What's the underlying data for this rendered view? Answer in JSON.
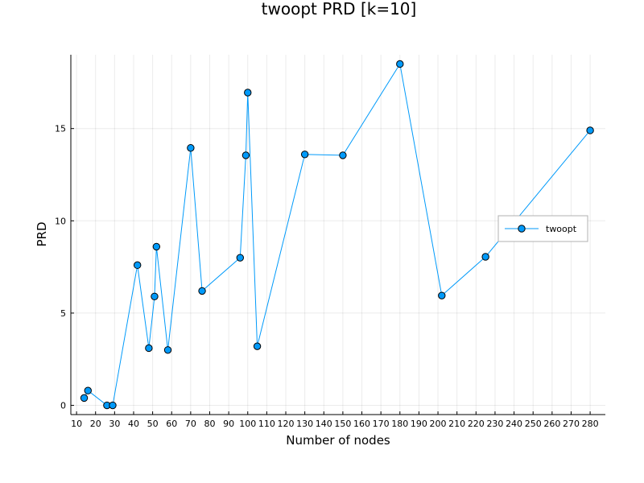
{
  "chart_data": {
    "type": "line",
    "title": "twoopt PRD [k=10]",
    "xlabel": "Number of nodes",
    "ylabel": "PRD",
    "xlim": [
      7,
      288
    ],
    "ylim": [
      -0.5,
      19
    ],
    "xticks": [
      10,
      20,
      30,
      40,
      50,
      60,
      70,
      80,
      90,
      100,
      110,
      120,
      130,
      140,
      150,
      160,
      170,
      180,
      190,
      200,
      210,
      220,
      230,
      240,
      250,
      260,
      270,
      280
    ],
    "yticks": [
      0,
      5,
      10,
      15
    ],
    "grid": true,
    "legend_position": "right",
    "series": [
      {
        "name": "twoopt",
        "color": "#009AFA",
        "marker": "circle",
        "x": [
          14,
          16,
          26,
          29,
          42,
          48,
          51,
          52,
          58,
          70,
          76,
          96,
          99,
          100,
          105,
          130,
          150,
          180,
          202,
          225,
          280
        ],
        "y": [
          0.4,
          0.8,
          0.0,
          0.0,
          7.6,
          3.1,
          5.9,
          8.6,
          3.0,
          13.95,
          6.2,
          8.0,
          13.55,
          16.95,
          3.2,
          13.6,
          13.55,
          18.5,
          5.95,
          8.05,
          14.9
        ]
      }
    ]
  }
}
